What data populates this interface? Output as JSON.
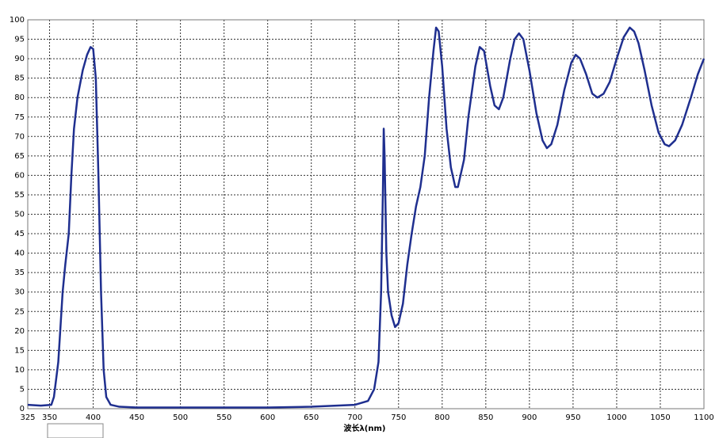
{
  "chart_data": {
    "type": "line",
    "x_label": "波长λ(nm)",
    "xlim": [
      325,
      1100
    ],
    "xticks": [
      325,
      350,
      400,
      450,
      500,
      550,
      600,
      650,
      700,
      750,
      800,
      850,
      900,
      950,
      1000,
      1050,
      1100
    ],
    "ylim": [
      0,
      100
    ],
    "yticks": [
      0,
      5,
      10,
      15,
      20,
      25,
      30,
      35,
      40,
      45,
      50,
      55,
      60,
      65,
      70,
      75,
      80,
      85,
      90,
      95,
      100
    ],
    "grid": true,
    "series": [
      {
        "color": "#1f2f8f",
        "x": [
          325,
          340,
          352,
          355,
          360,
          365,
          368,
          372,
          375,
          378,
          382,
          388,
          393,
          397,
          400,
          403,
          406,
          409,
          412,
          415,
          420,
          430,
          450,
          500,
          600,
          650,
          700,
          715,
          722,
          727,
          730,
          732,
          733,
          734,
          736,
          738,
          742,
          746,
          750,
          755,
          760,
          765,
          770,
          775,
          780,
          785,
          790,
          793,
          796,
          800,
          805,
          810,
          815,
          818,
          825,
          830,
          838,
          843,
          848,
          855,
          860,
          865,
          870,
          878,
          883,
          888,
          893,
          900,
          908,
          915,
          920,
          925,
          932,
          940,
          948,
          953,
          958,
          965,
          972,
          978,
          985,
          992,
          1000,
          1008,
          1015,
          1020,
          1025,
          1032,
          1040,
          1048,
          1055,
          1060,
          1067,
          1075,
          1085,
          1093,
          1100
        ],
        "values": [
          1,
          0.8,
          1,
          3,
          12,
          30,
          37,
          45,
          60,
          72,
          80,
          87,
          91,
          93,
          92.5,
          85,
          60,
          30,
          10,
          3,
          1,
          0.5,
          0.3,
          0.3,
          0.3,
          0.5,
          1,
          2,
          5,
          12,
          30,
          55,
          72,
          65,
          40,
          30,
          24,
          21,
          22,
          27,
          37,
          45,
          52,
          57,
          65,
          80,
          92,
          98,
          97,
          88,
          72,
          62,
          57,
          57,
          64,
          75,
          88,
          93,
          92,
          83,
          78,
          77,
          80,
          90,
          95,
          96.5,
          95,
          87,
          76,
          69,
          67,
          68,
          73,
          82,
          89,
          91,
          90,
          86,
          81,
          80,
          81,
          84,
          90,
          95.5,
          98,
          97,
          94,
          87,
          78,
          71,
          68,
          67.5,
          69,
          73,
          80,
          86,
          90
        ]
      }
    ]
  }
}
